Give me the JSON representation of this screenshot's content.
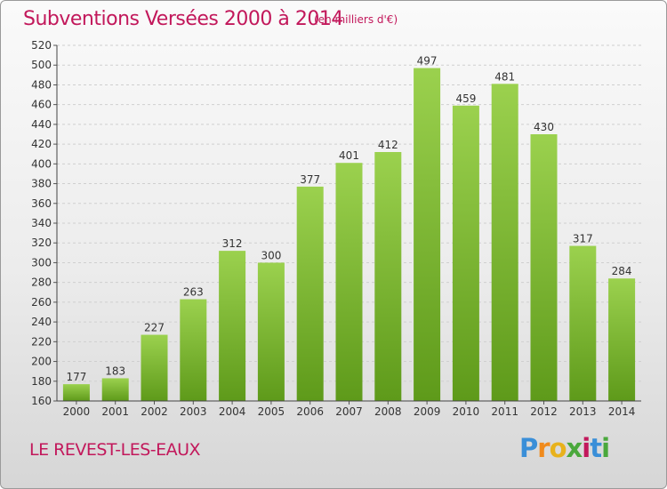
{
  "title": "Subventions Versées 2000 à 2014",
  "subtitle": "(en milliers d'€)",
  "commune": "LE REVEST-LES-EAUX",
  "logo": {
    "text": "Proxiti",
    "letter_colors": [
      "#3a8fd8",
      "#f08a1c",
      "#e8b21c",
      "#4aa83c",
      "#c2185b",
      "#3a8fd8",
      "#4aa83c"
    ]
  },
  "colors": {
    "title": "#c2185b",
    "bar_top": "#9bd14e",
    "bar_bottom": "#5e9a1a"
  },
  "chart_data": {
    "type": "bar",
    "categories": [
      "2000",
      "2001",
      "2002",
      "2003",
      "2004",
      "2005",
      "2006",
      "2007",
      "2008",
      "2009",
      "2010",
      "2011",
      "2012",
      "2013",
      "2014"
    ],
    "values": [
      177,
      183,
      227,
      263,
      312,
      300,
      377,
      401,
      412,
      497,
      459,
      481,
      430,
      317,
      284
    ],
    "ylim": [
      160,
      520
    ],
    "yticks": [
      160,
      180,
      200,
      220,
      240,
      260,
      280,
      300,
      320,
      340,
      360,
      380,
      400,
      420,
      440,
      460,
      480,
      500,
      520
    ],
    "grid": true,
    "legend": "none"
  }
}
